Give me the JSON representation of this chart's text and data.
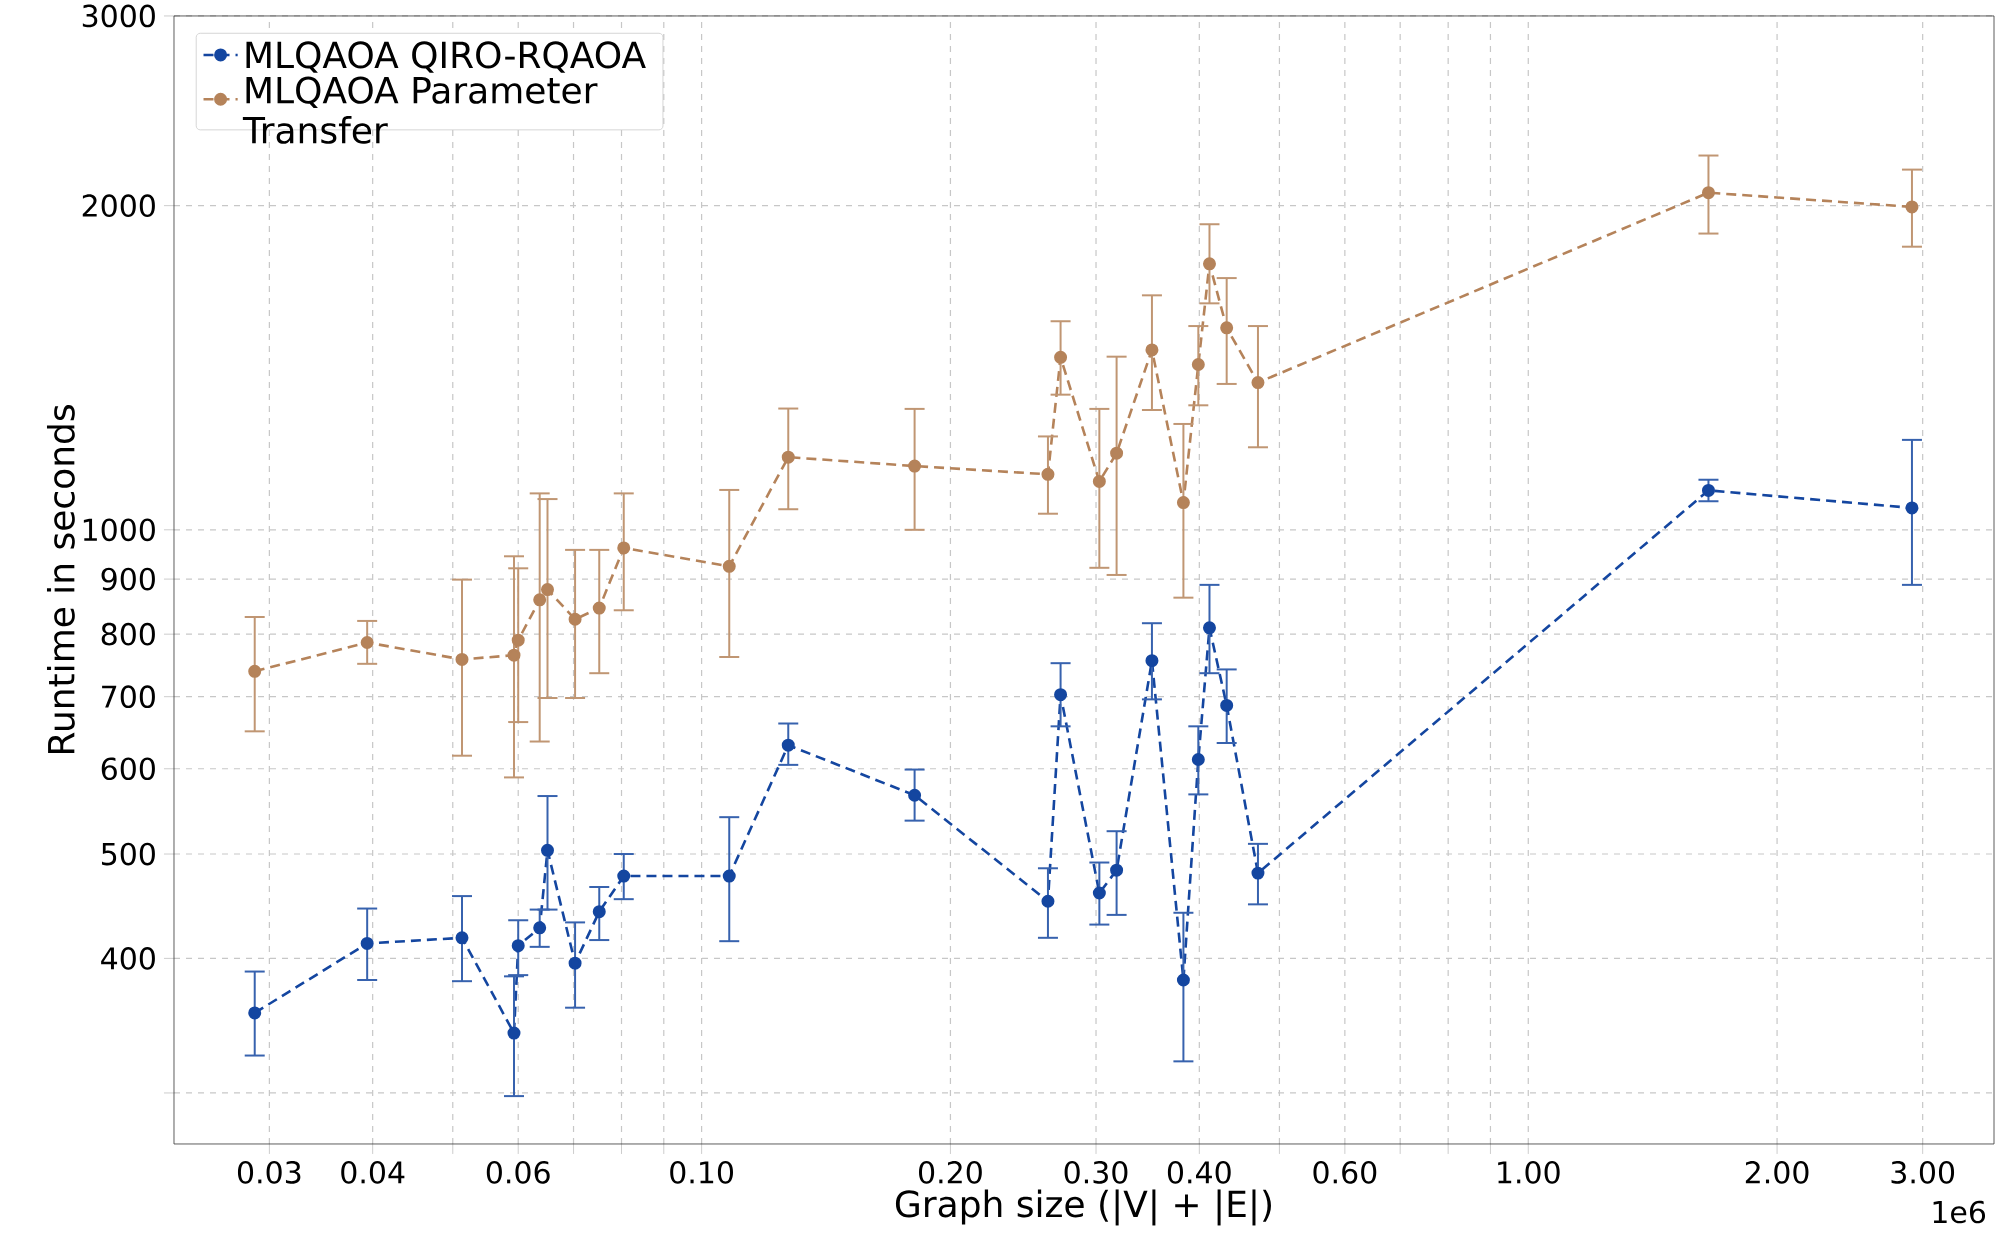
{
  "chart_data": {
    "type": "line",
    "xlabel": "Graph size (|V| + |E|)",
    "ylabel": "Runtime in seconds",
    "annotations": [
      "1e6"
    ],
    "log": "xy",
    "grid": true,
    "legend": "top left",
    "marker": "circle",
    "line_style": "dashed",
    "xlim": [
      0.023,
      3.66
    ],
    "ylim": [
      269,
      3000
    ],
    "xticks": [
      0.03,
      0.04,
      {
        "value": 0.05,
        "label": null
      },
      0.06,
      {
        "value": 0.07,
        "label": null
      },
      {
        "value": 0.08,
        "label": null
      },
      {
        "value": 0.09,
        "label": null
      },
      {
        "value": 0.1,
        "label": "0.10"
      },
      {
        "value": 0.2,
        "label": "0.20"
      },
      {
        "value": 0.3,
        "label": "0.30"
      },
      {
        "value": 0.4,
        "label": "0.40"
      },
      {
        "value": 0.5,
        "label": null
      },
      {
        "value": 0.6,
        "label": "0.60"
      },
      {
        "value": 0.7,
        "label": null
      },
      {
        "value": 0.8,
        "label": null
      },
      {
        "value": 0.9,
        "label": null
      },
      {
        "value": 1,
        "label": "1.00"
      },
      {
        "value": 2,
        "label": "2.00"
      },
      {
        "value": 3,
        "label": "3.00"
      }
    ],
    "yticks": [
      {
        "value": 300,
        "label": null
      },
      400,
      500,
      600,
      700,
      800,
      900,
      1000,
      2000,
      3000
    ],
    "x": [
      0.0288,
      0.0394,
      0.0513,
      0.0593,
      0.06,
      0.0637,
      0.0651,
      0.0703,
      0.0752,
      0.0805,
      0.108,
      0.1273,
      0.181,
      0.2624,
      0.2718,
      0.3028,
      0.3177,
      0.3506,
      0.3827,
      0.399,
      0.4115,
      0.4317,
      0.471,
      1.652,
      2.912
    ],
    "series": [
      {
        "name": "MLQAOA QIRO-RQAOA",
        "color": "#1446a0",
        "values": [
          356,
          413,
          418,
          341,
          411,
          427,
          504,
          396,
          442,
          477,
          477,
          631,
          567,
          452,
          703,
          460,
          483,
          756,
          382,
          612,
          811,
          687,
          480,
          1088,
          1048
        ],
        "errors": [
          [
            325,
            389
          ],
          [
            382,
            445
          ],
          [
            381,
            457
          ],
          [
            298,
            385
          ],
          [
            386,
            434
          ],
          [
            410,
            444
          ],
          [
            444,
            566
          ],
          [
            360,
            432
          ],
          [
            416,
            466
          ],
          [
            454,
            500
          ],
          [
            415,
            541
          ],
          [
            605,
            661
          ],
          [
            537,
            599
          ],
          [
            418,
            485
          ],
          [
            657,
            752
          ],
          [
            430,
            491
          ],
          [
            439,
            525
          ],
          [
            696,
            819
          ],
          [
            321,
            441
          ],
          [
            568,
            657
          ],
          [
            736,
            889
          ],
          [
            634,
            742
          ],
          [
            449,
            511
          ],
          [
            1063,
            1113
          ],
          [
            889,
            1212
          ]
        ]
      },
      {
        "name": "MLQAOA Parameter Transfer",
        "color": "#b5835a",
        "values": [
          739,
          786,
          758,
          765,
          790,
          861,
          880,
          826,
          846,
          962,
          925,
          1168,
          1146,
          1126,
          1446,
          1109,
          1178,
          1469,
          1060,
          1424,
          1766,
          1540,
          1370,
          2056,
          1995
        ],
        "errors": [
          [
            650,
            830
          ],
          [
            751,
            823
          ],
          [
            617,
            899
          ],
          [
            589,
            945
          ],
          [
            663,
            921
          ],
          [
            636,
            1081
          ],
          [
            698,
            1068
          ],
          [
            698,
            958
          ],
          [
            736,
            958
          ],
          [
            842,
            1081
          ],
          [
            762,
            1089
          ],
          [
            1045,
            1296
          ],
          [
            1000,
            1295
          ],
          [
            1035,
            1221
          ],
          [
            1335,
            1562
          ],
          [
            922,
            1295
          ],
          [
            908,
            1448
          ],
          [
            1292,
            1651
          ],
          [
            865,
            1254
          ],
          [
            1305,
            1546
          ],
          [
            1623,
            1922
          ],
          [
            1366,
            1713
          ],
          [
            1193,
            1546
          ],
          [
            1884,
            2226
          ],
          [
            1832,
            2160
          ]
        ]
      }
    ]
  }
}
